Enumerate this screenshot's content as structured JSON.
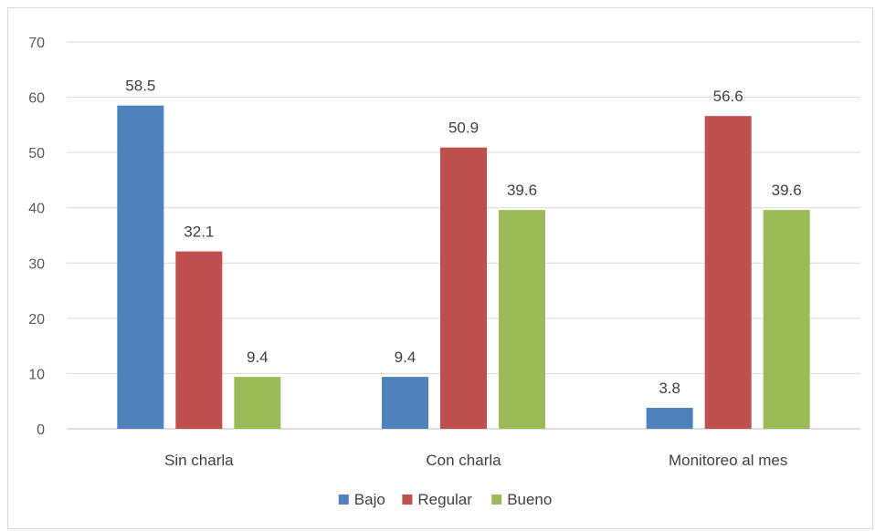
{
  "chart_data": {
    "type": "bar",
    "categories": [
      "Sin charla",
      "Con charla",
      "Monitoreo al mes"
    ],
    "series": [
      {
        "name": "Bajo",
        "color": "#4f81bd",
        "values": [
          58.5,
          9.4,
          3.8
        ]
      },
      {
        "name": "Regular",
        "color": "#c0504d",
        "values": [
          32.1,
          50.9,
          56.6
        ]
      },
      {
        "name": "Bueno",
        "color": "#9bbb59",
        "values": [
          9.4,
          39.6,
          39.6
        ]
      }
    ],
    "title": "",
    "xlabel": "",
    "ylabel": "",
    "ylim": [
      0,
      70
    ],
    "yticks": [
      0,
      10,
      20,
      30,
      40,
      50,
      60,
      70
    ],
    "grid": true,
    "legend_position": "bottom",
    "data_labels": true
  }
}
